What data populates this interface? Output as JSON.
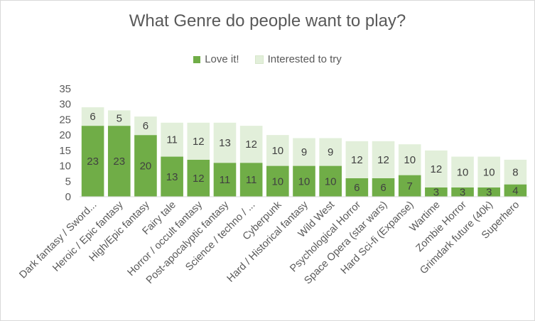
{
  "chart_data": {
    "type": "bar",
    "stacked": true,
    "title": "What Genre do people want to play?",
    "legend_position": "top",
    "ylim": [
      0,
      35
    ],
    "yticks": [
      0,
      5,
      10,
      15,
      20,
      25,
      30,
      35
    ],
    "grid": false,
    "categories": [
      "Dark fantasy / Sword...",
      "Heroic / Epic fantasy",
      "High/Epic fantasy",
      "Fairy tale",
      "Horror / occult fantasy",
      "Post-apocalyptic fantasy",
      "Science / techno / ...",
      "Cyberpunk",
      "Hard / Historical fantasy",
      "Wild West",
      "Psychological Horror",
      "Space Opera (star wars)",
      "Hard Sci-fi (Expanse)",
      "Wartime",
      "Zombie Horror",
      "Grimdark future (40k)",
      "Superhero"
    ],
    "series": [
      {
        "name": "Love it!",
        "color": "#70ad47",
        "values": [
          23,
          23,
          20,
          13,
          12,
          11,
          11,
          10,
          10,
          10,
          6,
          6,
          7,
          3,
          3,
          3,
          4
        ]
      },
      {
        "name": "Interested to try",
        "color": "#e2efda",
        "values": [
          6,
          5,
          6,
          11,
          12,
          13,
          12,
          10,
          9,
          9,
          12,
          12,
          10,
          12,
          10,
          10,
          8
        ]
      }
    ]
  }
}
